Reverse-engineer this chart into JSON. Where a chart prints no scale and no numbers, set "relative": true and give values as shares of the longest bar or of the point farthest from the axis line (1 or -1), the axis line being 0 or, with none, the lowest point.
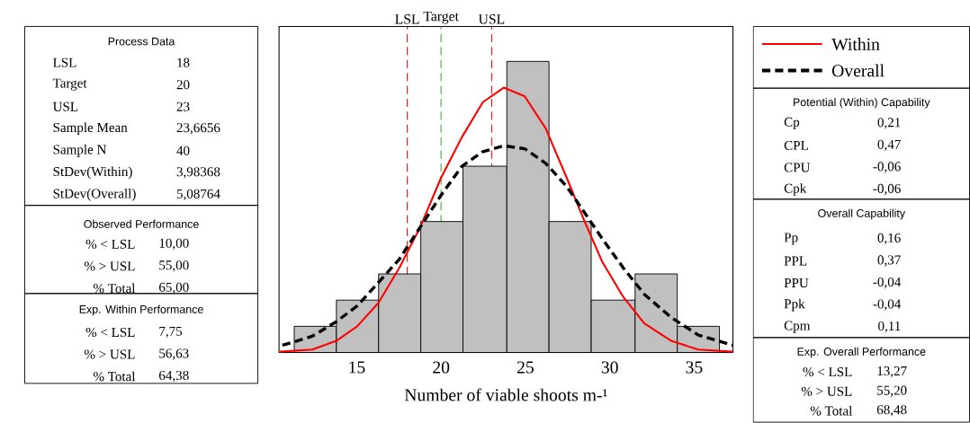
{
  "chart_data": {
    "type": "histogram",
    "relative": true,
    "xlabel": "Number of viable shoots m-¹",
    "bins": [
      11.3,
      13.8,
      16.3,
      18.8,
      21.3,
      23.9,
      26.4,
      28.9,
      31.5,
      34.0,
      36.5
    ],
    "values": [
      0.09,
      0.18,
      0.27,
      0.45,
      0.64,
      1,
      0.45,
      0.18,
      0.27,
      0.09
    ],
    "color": "#c0c0c0",
    "series": [
      {
        "name": "Within",
        "type": "line",
        "color": "#ff0000",
        "line_style": "solid",
        "x": [
          10.42,
          12.37,
          13.79,
          15.03,
          16.28,
          17.52,
          18.76,
          20.0,
          21.24,
          22.48,
          23.72,
          24.96,
          26.2,
          27.45,
          28.51,
          29.57,
          30.81,
          32.05,
          33.65,
          35.25,
          37.29
        ],
        "values": [
          0.003,
          0.01,
          0.04,
          0.09,
          0.17,
          0.29,
          0.43,
          0.6,
          0.74,
          0.86,
          0.91,
          0.88,
          0.77,
          0.6,
          0.45,
          0.31,
          0.19,
          0.1,
          0.04,
          0.01,
          0.003
        ]
      },
      {
        "name": "Overall",
        "type": "line",
        "color": "#000000",
        "line_style": "dashed",
        "x": [
          10.6,
          12.37,
          13.79,
          15.03,
          16.28,
          17.52,
          18.76,
          20.0,
          21.24,
          22.48,
          23.72,
          24.96,
          26.2,
          27.45,
          28.51,
          29.57,
          30.81,
          32.05,
          33.65,
          35.25,
          37.29
        ],
        "values": [
          0.025,
          0.056,
          0.106,
          0.16,
          0.24,
          0.32,
          0.43,
          0.54,
          0.64,
          0.69,
          0.71,
          0.7,
          0.65,
          0.57,
          0.48,
          0.39,
          0.29,
          0.2,
          0.12,
          0.06,
          0.025
        ]
      }
    ],
    "xlim": [
      10.4,
      37.3
    ],
    "xticks": [
      15,
      20,
      25,
      30,
      35
    ],
    "ref_lines": [
      {
        "axis": "x",
        "value": 18,
        "label": "LSL",
        "color": "#ff0000",
        "line_style": "dashed"
      },
      {
        "axis": "x",
        "value": 20,
        "label": "Target",
        "color": "#33aa33",
        "line_style": "dashed"
      },
      {
        "axis": "x",
        "value": 23,
        "label": "USL",
        "color": "#ff0000",
        "line_style": "dashed"
      }
    ],
    "legend": "top right",
    "marker": "none",
    "annotations": [
      "Process Data",
      "LSL",
      "18",
      "Target",
      "20",
      "USL",
      "23",
      "Sample Mean",
      "23,6656",
      "Sample N",
      "40",
      "StDev(Within)",
      "3,98368",
      "StDev(Overall)",
      "5,08764",
      "Observed Performance",
      "% < LSL",
      "10,00",
      "% > USL",
      "55,00",
      "% Total",
      "65,00",
      "Exp. Within Performance",
      "% < LSL",
      "7,75",
      "% > USL",
      "56,63",
      "% Total",
      "64,38",
      "Potential (Within) Capability",
      "Cp",
      "0,21",
      "CPL",
      "0,47",
      "CPU",
      "-0,06",
      "Cpk",
      "-0,06",
      "Overall Capability",
      "Pp",
      "0,16",
      "PPL",
      "0,37",
      "PPU",
      "-0,04",
      "Ppk",
      "-0,04",
      "Cpm",
      "0,11",
      "Exp. Overall Performance",
      "% < LSL",
      "13,27",
      "% > USL",
      "55,20",
      "% Total",
      "68,48"
    ]
  }
}
